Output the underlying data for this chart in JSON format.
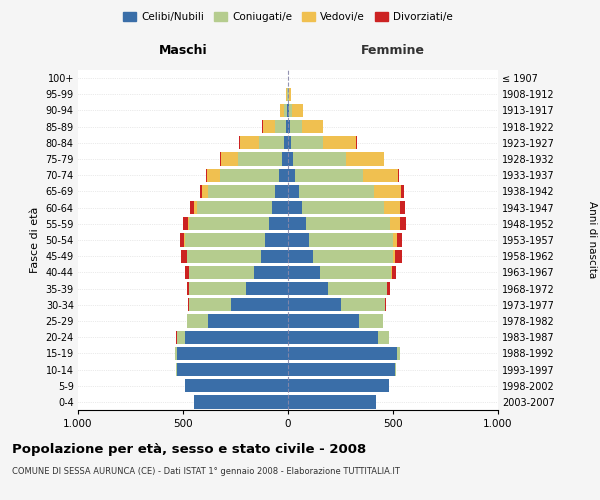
{
  "age_groups": [
    "0-4",
    "5-9",
    "10-14",
    "15-19",
    "20-24",
    "25-29",
    "30-34",
    "35-39",
    "40-44",
    "45-49",
    "50-54",
    "55-59",
    "60-64",
    "65-69",
    "70-74",
    "75-79",
    "80-84",
    "85-89",
    "90-94",
    "95-99",
    "100+"
  ],
  "birth_years": [
    "2003-2007",
    "1998-2002",
    "1993-1997",
    "1988-1992",
    "1983-1987",
    "1978-1982",
    "1973-1977",
    "1968-1972",
    "1963-1967",
    "1958-1962",
    "1953-1957",
    "1948-1952",
    "1943-1947",
    "1938-1942",
    "1933-1937",
    "1928-1932",
    "1923-1927",
    "1918-1922",
    "1913-1917",
    "1908-1912",
    "≤ 1907"
  ],
  "male": {
    "celibi": [
      450,
      490,
      530,
      530,
      490,
      380,
      270,
      200,
      160,
      130,
      110,
      90,
      75,
      60,
      45,
      30,
      20,
      10,
      5,
      2,
      0
    ],
    "coniugati": [
      0,
      0,
      2,
      10,
      40,
      100,
      200,
      270,
      310,
      350,
      380,
      380,
      360,
      320,
      280,
      210,
      120,
      50,
      15,
      3,
      0
    ],
    "vedovi": [
      0,
      0,
      0,
      0,
      0,
      0,
      0,
      1,
      2,
      3,
      5,
      8,
      15,
      30,
      60,
      80,
      90,
      60,
      20,
      5,
      0
    ],
    "divorziati": [
      0,
      0,
      0,
      0,
      1,
      3,
      5,
      10,
      18,
      25,
      18,
      20,
      18,
      10,
      5,
      3,
      2,
      2,
      0,
      0,
      0
    ]
  },
  "female": {
    "nubili": [
      420,
      480,
      510,
      520,
      430,
      340,
      250,
      190,
      150,
      120,
      100,
      85,
      65,
      50,
      35,
      25,
      15,
      10,
      5,
      2,
      0
    ],
    "coniugate": [
      0,
      0,
      3,
      15,
      50,
      110,
      210,
      280,
      340,
      380,
      400,
      400,
      390,
      360,
      320,
      250,
      150,
      55,
      15,
      3,
      0
    ],
    "vedove": [
      0,
      0,
      0,
      0,
      0,
      0,
      1,
      2,
      4,
      8,
      20,
      50,
      80,
      130,
      170,
      180,
      160,
      100,
      50,
      10,
      0
    ],
    "divorziate": [
      0,
      0,
      0,
      0,
      1,
      3,
      8,
      12,
      20,
      35,
      25,
      25,
      20,
      10,
      5,
      4,
      3,
      2,
      0,
      0,
      0
    ]
  },
  "colors": {
    "celibi": "#3a6ea8",
    "coniugati": "#b5cc8e",
    "vedovi": "#f0c050",
    "divorziati": "#cc2222"
  },
  "xlim": 1000,
  "title": "Popolazione per età, sesso e stato civile - 2008",
  "subtitle": "COMUNE DI SESSA AURUNCA (CE) - Dati ISTAT 1° gennaio 2008 - Elaborazione TUTTITALIA.IT",
  "ylabel_left": "Fasce di età",
  "ylabel_right": "Anni di nascita",
  "xlabel_left": "Maschi",
  "xlabel_right": "Femmine",
  "legend_labels": [
    "Celibi/Nubili",
    "Coniugati/e",
    "Vedovi/e",
    "Divorziati/e"
  ],
  "bg_color": "#f5f5f5",
  "plot_bg_color": "#ffffff"
}
